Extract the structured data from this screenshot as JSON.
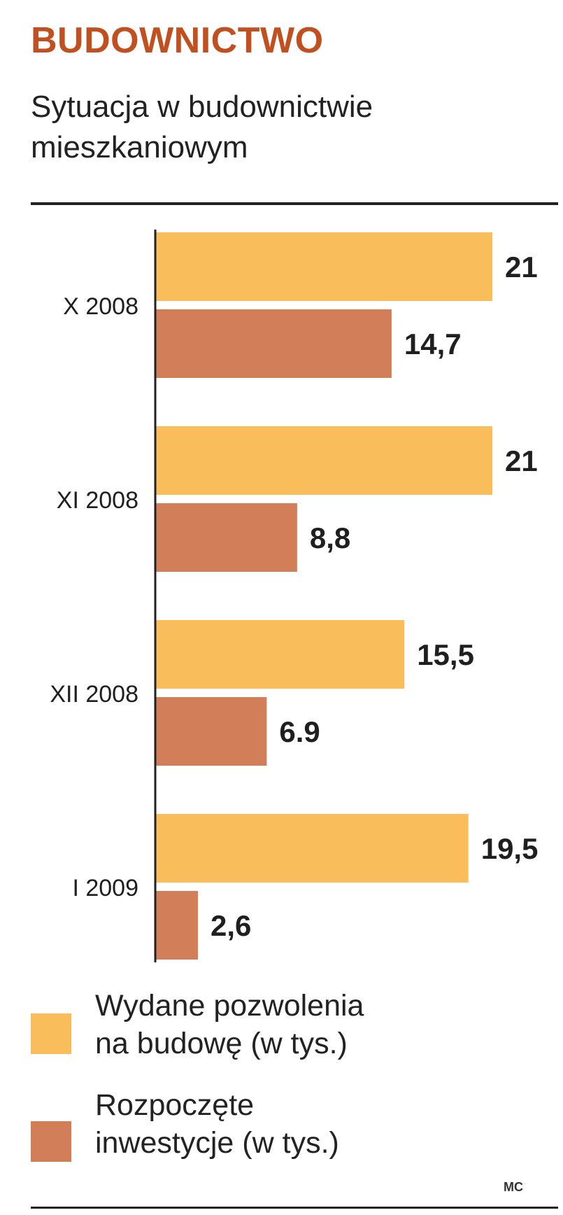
{
  "header": {
    "title": "BUDOWNICTWO",
    "subtitle": "Sytuacja w budownictwie\nmieszkaniowym"
  },
  "colors": {
    "title": "#c0501f",
    "series_permits": "#f9bd5c",
    "series_investments": "#d17e59",
    "axis": "#222222",
    "text": "#1f1f1f"
  },
  "chart_data": {
    "type": "bar",
    "orientation": "horizontal",
    "title": "Sytuacja w budownictwie mieszkaniowym",
    "categories": [
      "X 2008",
      "XI 2008",
      "XII 2008",
      "I 2009"
    ],
    "series": [
      {
        "name": "Wydane pozwolenia na budowę (w tys.)",
        "values": [
          21,
          21,
          15.5,
          19.5
        ],
        "labels": [
          "21",
          "21",
          "15,5",
          "19,5"
        ]
      },
      {
        "name": "Rozpoczęte inwestycje (w tys.)",
        "values": [
          14.7,
          8.8,
          6.9,
          2.6
        ],
        "labels": [
          "14,7",
          "8,8",
          "6.9",
          "2,6"
        ]
      }
    ],
    "xlim": [
      0,
      21.5
    ],
    "grid": false
  },
  "legend": {
    "items": [
      {
        "label": "Wydane pozwolenia\nna budowę (w tys.)",
        "color": "#f9bd5c"
      },
      {
        "label": "Rozpoczęte\ninwestycje (w tys.)",
        "color": "#d17e59"
      }
    ]
  },
  "credit": "MC"
}
